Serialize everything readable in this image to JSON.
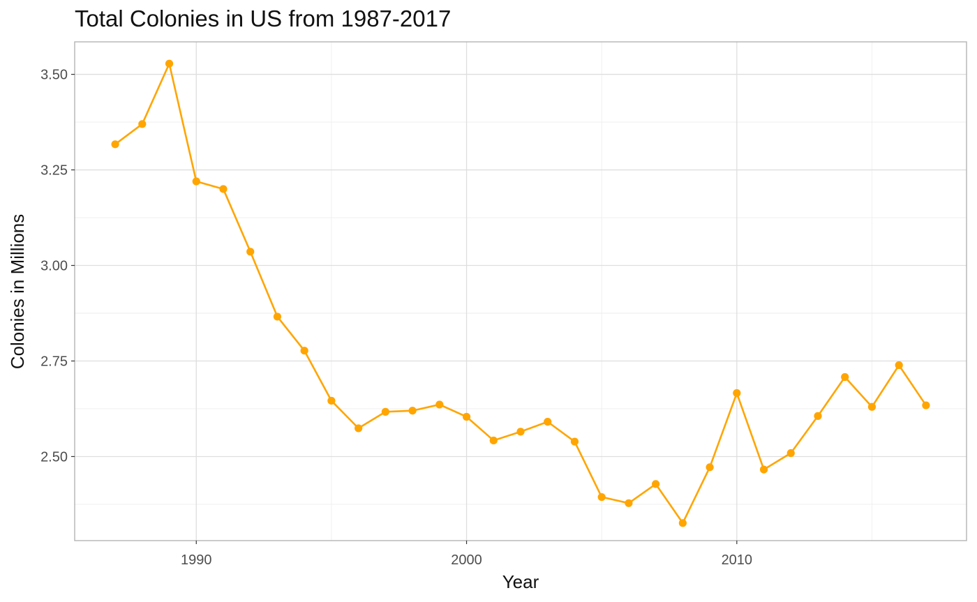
{
  "chart_data": {
    "type": "line",
    "title": "Total Colonies in US from 1987-2017",
    "xlabel": "Year",
    "ylabel": "Colonies in Millions",
    "xlim": [
      1985.5,
      2018.5
    ],
    "ylim": [
      2.28,
      3.585
    ],
    "x_ticks": [
      1990,
      2000,
      2010
    ],
    "x_tick_labels": [
      "1990",
      "2000",
      "2010"
    ],
    "x_minor_ticks": [
      1995,
      2005,
      2015
    ],
    "y_ticks": [
      2.5,
      2.75,
      3.0,
      3.25,
      3.5
    ],
    "y_tick_labels": [
      "2.50",
      "2.75",
      "3.00",
      "3.25",
      "3.50"
    ],
    "y_minor_ticks": [
      2.375,
      2.625,
      2.875,
      3.125,
      3.375
    ],
    "grid": true,
    "legend": "none",
    "series": [
      {
        "color": "#FFA500",
        "x": [
          1987,
          1988,
          1989,
          1990,
          1991,
          1992,
          1993,
          1994,
          1995,
          1996,
          1997,
          1998,
          1999,
          2000,
          2001,
          2002,
          2003,
          2004,
          2005,
          2006,
          2007,
          2008,
          2009,
          2010,
          2011,
          2012,
          2013,
          2014,
          2015,
          2016,
          2017
        ],
        "values": [
          3.317,
          3.37,
          3.528,
          3.22,
          3.2,
          3.036,
          2.866,
          2.777,
          2.646,
          2.574,
          2.617,
          2.62,
          2.636,
          2.604,
          2.542,
          2.565,
          2.591,
          2.539,
          2.394,
          2.378,
          2.428,
          2.326,
          2.472,
          2.666,
          2.466,
          2.509,
          2.606,
          2.708,
          2.63,
          2.739,
          2.634
        ]
      }
    ]
  }
}
